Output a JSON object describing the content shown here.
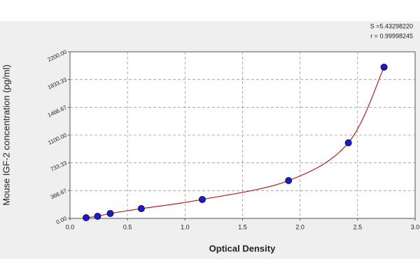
{
  "chart_data": {
    "type": "scatter",
    "x_label": "Optical Density",
    "y_label": "Mouse IGF-2 concentration (pg/ml)",
    "annotations": [
      "S =5.43298220",
      "r = 0.99998245"
    ],
    "x": [
      0.14,
      0.24,
      0.35,
      0.62,
      1.15,
      1.9,
      2.42,
      2.73
    ],
    "series": [
      {
        "color": "#1c1cc4",
        "line_color": "#b02020",
        "values": [
          9,
          28,
          65,
          129,
          250,
          499,
          998,
          1997
        ]
      }
    ],
    "xlim": [
      0,
      3
    ],
    "xticks": [
      {
        "value": 0,
        "label": "0.0"
      },
      0.5,
      {
        "value": 1,
        "label": "1.0"
      },
      1.5,
      {
        "value": 2,
        "label": "2.0"
      },
      2.5,
      {
        "value": 3,
        "label": "3.0"
      }
    ],
    "ylim": [
      0,
      2200
    ],
    "yticks": [
      {
        "value": 0,
        "label": "0.00"
      },
      366.67,
      733.33,
      {
        "value": 1100,
        "label": "1100.00"
      },
      1466.67,
      1833.33,
      {
        "value": 2200,
        "label": "2200.00"
      }
    ],
    "grid": true
  }
}
